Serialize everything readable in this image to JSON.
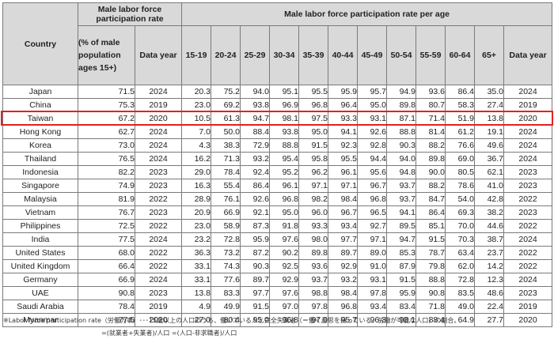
{
  "header": {
    "country": "Country",
    "overall_group": "Male labor force participation rate",
    "overall_pct": "(% of male population ages 15+)",
    "overall_year": "Data year",
    "age_group": "Male labor force participation rate per age",
    "ages": [
      "15-19",
      "20-24",
      "25-29",
      "30-34",
      "35-39",
      "40-44",
      "45-49",
      "50-54",
      "55-59",
      "60-64",
      "65+"
    ],
    "age_year": "Data year"
  },
  "highlight": {
    "country": "Taiwan",
    "color": "#e32020"
  },
  "rows": [
    {
      "country": "Japan",
      "rate": "71.5",
      "year": "2024",
      "ages": [
        "20.3",
        "75.2",
        "94.0",
        "95.1",
        "95.5",
        "95.9",
        "95.7",
        "94.9",
        "93.6",
        "86.4",
        "35.0"
      ],
      "age_year": "2024"
    },
    {
      "country": "China",
      "rate": "75.3",
      "year": "2019",
      "ages": [
        "23.0",
        "69.2",
        "93.8",
        "96.9",
        "96.8",
        "96.4",
        "95.0",
        "89.8",
        "80.7",
        "58.3",
        "27.4"
      ],
      "age_year": "2019"
    },
    {
      "country": "Taiwan",
      "rate": "67.2",
      "year": "2020",
      "ages": [
        "10.5",
        "61.3",
        "94.7",
        "98.1",
        "97.5",
        "93.3",
        "93.1",
        "87.1",
        "71.4",
        "51.9",
        "13.8"
      ],
      "age_year": "2020"
    },
    {
      "country": "Hong Kong",
      "rate": "62.7",
      "year": "2024",
      "ages": [
        "7.0",
        "50.0",
        "88.4",
        "93.8",
        "95.0",
        "94.1",
        "92.6",
        "88.8",
        "81.4",
        "61.2",
        "19.1"
      ],
      "age_year": "2024"
    },
    {
      "country": "Korea",
      "rate": "73.0",
      "year": "2024",
      "ages": [
        "4.3",
        "38.3",
        "72.9",
        "88.8",
        "91.5",
        "92.3",
        "92.8",
        "90.3",
        "88.2",
        "76.6",
        "49.6"
      ],
      "age_year": "2024"
    },
    {
      "country": "Thailand",
      "rate": "76.5",
      "year": "2024",
      "ages": [
        "16.2",
        "71.3",
        "93.2",
        "95.4",
        "95.8",
        "95.5",
        "94.4",
        "94.0",
        "89.8",
        "69.0",
        "36.7"
      ],
      "age_year": "2024"
    },
    {
      "country": "Indonesia",
      "rate": "82.2",
      "year": "2023",
      "ages": [
        "29.0",
        "78.4",
        "92.4",
        "95.2",
        "96.2",
        "96.1",
        "95.6",
        "94.8",
        "90.0",
        "80.5",
        "62.1"
      ],
      "age_year": "2023"
    },
    {
      "country": "Singapore",
      "rate": "74.9",
      "year": "2023",
      "ages": [
        "16.3",
        "55.4",
        "86.4",
        "96.1",
        "97.1",
        "97.1",
        "96.7",
        "93.7",
        "88.2",
        "78.6",
        "41.0"
      ],
      "age_year": "2023"
    },
    {
      "country": "Malaysia",
      "rate": "81.9",
      "year": "2022",
      "ages": [
        "28.9",
        "76.1",
        "92.6",
        "96.8",
        "98.2",
        "98.4",
        "96.8",
        "93.7",
        "84.7",
        "54.0",
        "42.8"
      ],
      "age_year": "2022"
    },
    {
      "country": "Vietnam",
      "rate": "76.7",
      "year": "2023",
      "ages": [
        "20.9",
        "66.9",
        "92.1",
        "95.0",
        "96.0",
        "96.7",
        "96.5",
        "94.1",
        "86.4",
        "69.3",
        "38.2"
      ],
      "age_year": "2023"
    },
    {
      "country": "Philippines",
      "rate": "72.5",
      "year": "2022",
      "ages": [
        "23.0",
        "58.9",
        "87.3",
        "91.8",
        "93.3",
        "93.4",
        "92.7",
        "89.5",
        "85.1",
        "70.0",
        "44.6"
      ],
      "age_year": "2022"
    },
    {
      "country": "India",
      "rate": "77.5",
      "year": "2024",
      "ages": [
        "23.2",
        "72.8",
        "95.9",
        "97.6",
        "98.0",
        "97.7",
        "97.1",
        "94.7",
        "91.5",
        "70.3",
        "38.7"
      ],
      "age_year": "2024"
    },
    {
      "country": "United States",
      "rate": "68.0",
      "year": "2022",
      "ages": [
        "36.3",
        "73.2",
        "87.2",
        "90.2",
        "89.8",
        "89.7",
        "89.0",
        "85.3",
        "78.7",
        "63.4",
        "23.7"
      ],
      "age_year": "2022"
    },
    {
      "country": "United Kingdom",
      "rate": "66.4",
      "year": "2022",
      "ages": [
        "33.1",
        "74.3",
        "90.3",
        "92.5",
        "93.6",
        "92.9",
        "91.0",
        "87.9",
        "79.8",
        "62.0",
        "14.2"
      ],
      "age_year": "2022"
    },
    {
      "country": "Germany",
      "rate": "66.9",
      "year": "2024",
      "ages": [
        "33.1",
        "77.6",
        "89.7",
        "92.9",
        "93.7",
        "93.2",
        "93.1",
        "91.5",
        "88.8",
        "72.8",
        "12.3"
      ],
      "age_year": "2024"
    },
    {
      "country": "UAE",
      "rate": "90.8",
      "year": "2023",
      "ages": [
        "13.8",
        "83.3",
        "97.7",
        "97.6",
        "98.8",
        "98.4",
        "97.8",
        "95.9",
        "90.8",
        "83.5",
        "48.6"
      ],
      "age_year": "2023"
    },
    {
      "country": "Saudi Arabia",
      "rate": "78.4",
      "year": "2019",
      "ages": [
        "4.9",
        "49.9",
        "91.5",
        "97.0",
        "97.8",
        "96.8",
        "93.4",
        "83.4",
        "71.8",
        "49.0",
        "22.4"
      ],
      "age_year": "2019"
    },
    {
      "country": "Myanmar",
      "rate": "77.5",
      "year": "2020",
      "ages": [
        "27.0",
        "80.4",
        "95.0",
        "96.8",
        "97.0",
        "95.7",
        "96.3",
        "93.1",
        "88.4",
        "64.9",
        "27.7"
      ],
      "age_year": "2020"
    }
  ],
  "footnote": {
    "line1": "※Labor force participation rate（労働力率）･･･15歳以上の人口のうち、働いている人と完全失業者（＝働く意思を持っている、労働が可能な人口）の割合。",
    "line2": "=(就業者+失業者)/人口 =(人口-非求職者)/人口"
  }
}
